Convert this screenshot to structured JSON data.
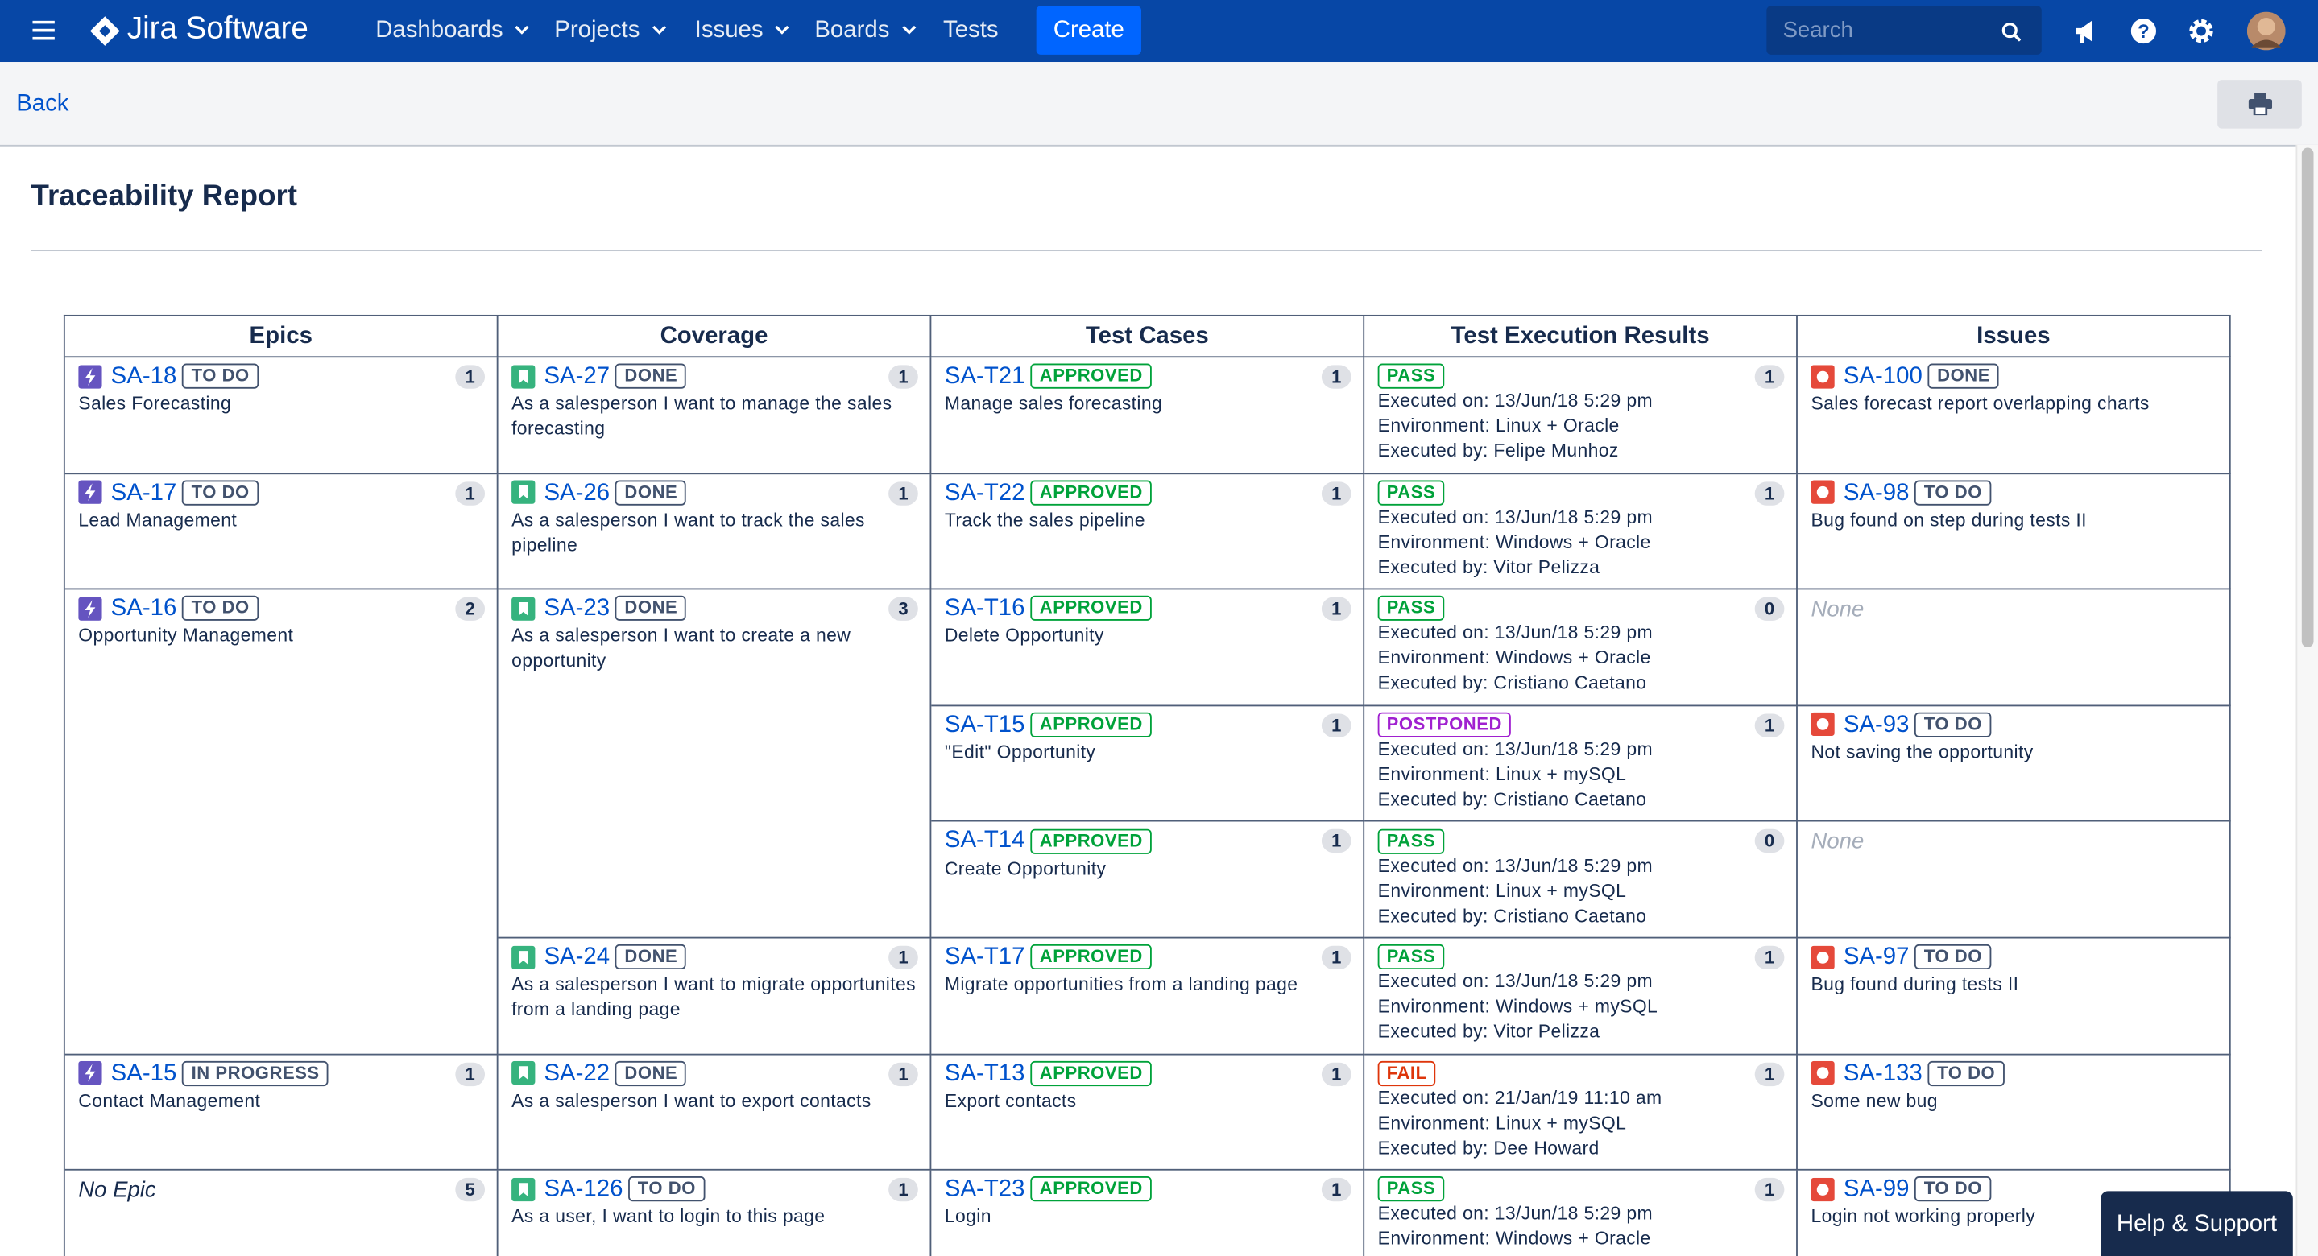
{
  "nav": {
    "brand": "Jira Software",
    "items": [
      {
        "label": "Dashboards",
        "dropdown": true
      },
      {
        "label": "Projects",
        "dropdown": true
      },
      {
        "label": "Issues",
        "dropdown": true
      },
      {
        "label": "Boards",
        "dropdown": true
      },
      {
        "label": "Tests",
        "dropdown": false
      }
    ],
    "create": "Create",
    "search": "Search"
  },
  "toolbar": {
    "back": "Back"
  },
  "report": {
    "title": "Traceability Report",
    "headers": [
      "Epics",
      "Coverage",
      "Test Cases",
      "Test Execution Results",
      "Issues"
    ],
    "columns": [
      [
        {
          "key": "SA-18",
          "status": {
            "label": "TO DO",
            "color": "#42526e"
          },
          "summary": "Sales Forecasting",
          "count": 1
        },
        {
          "key": "SA-17",
          "status": {
            "label": "TO DO",
            "color": "#42526e"
          },
          "summary": "Lead Management",
          "count": 1
        },
        {
          "key": "SA-16",
          "status": {
            "label": "TO DO",
            "color": "#42526e"
          },
          "summary": "Opportunity Management",
          "count": 2,
          "rowspan": 4
        },
        {
          "key": "SA-15",
          "status": {
            "label": "IN PROGRESS",
            "color": "#42526e"
          },
          "summary": "Contact Management",
          "count": 1
        },
        {
          "label": "No Epic",
          "count": 5
        }
      ],
      [
        {
          "key": "SA-27",
          "status": {
            "label": "DONE",
            "color": "#42526e"
          },
          "summary": "As a salesperson I want to manage the sales forecasting",
          "count": 1
        },
        {
          "key": "SA-26",
          "status": {
            "label": "DONE",
            "color": "#42526e"
          },
          "summary": "As a salesperson I want to track the sales pipeline",
          "count": 1
        },
        {
          "key": "SA-23",
          "status": {
            "label": "DONE",
            "color": "#42526e"
          },
          "summary": "As a salesperson I want to create a new opportunity",
          "count": 3,
          "rowspan": 3
        },
        {
          "key": "SA-24",
          "status": {
            "label": "DONE",
            "color": "#42526e"
          },
          "summary": "As a salesperson I want to migrate opportunites from a landing page",
          "count": 1
        },
        {
          "key": "SA-22",
          "status": {
            "label": "DONE",
            "color": "#42526e"
          },
          "summary": "As a salesperson I want to export contacts",
          "count": 1
        },
        {
          "key": "SA-126",
          "status": {
            "label": "TO DO",
            "color": "#42526e"
          },
          "summary": "As a user, I want to login to this page",
          "count": 1
        }
      ],
      [
        {
          "key": "SA-T21",
          "status": {
            "label": "APPROVED",
            "color": "#00a23a"
          },
          "summary": "Manage sales forecasting",
          "count": 1
        },
        {
          "key": "SA-T22",
          "status": {
            "label": "APPROVED",
            "color": "#00a23a"
          },
          "summary": "Track the sales pipeline",
          "count": 1
        },
        {
          "key": "SA-T16",
          "status": {
            "label": "APPROVED",
            "color": "#00a23a"
          },
          "summary": "Delete Opportunity",
          "count": 1
        },
        {
          "key": "SA-T15",
          "status": {
            "label": "APPROVED",
            "color": "#00a23a"
          },
          "summary": "\"Edit\" Opportunity",
          "count": 1
        },
        {
          "key": "SA-T14",
          "status": {
            "label": "APPROVED",
            "color": "#00a23a"
          },
          "summary": "Create Opportunity",
          "count": 1
        },
        {
          "key": "SA-T17",
          "status": {
            "label": "APPROVED",
            "color": "#00a23a"
          },
          "summary": "Migrate opportunities from a landing page",
          "count": 1
        },
        {
          "key": "SA-T13",
          "status": {
            "label": "APPROVED",
            "color": "#00a23a"
          },
          "summary": "Export contacts",
          "count": 1
        },
        {
          "key": "SA-T23",
          "status": {
            "label": "APPROVED",
            "color": "#00a23a"
          },
          "summary": "Login",
          "count": 1
        }
      ],
      [
        {
          "status": {
            "label": "PASS",
            "color": "#00a23a"
          },
          "lines": [
            "Executed on: 13/Jun/18 5:29 pm",
            "Environment: Linux + Oracle",
            "Executed by: Felipe Munhoz"
          ],
          "count": 1
        },
        {
          "status": {
            "label": "PASS",
            "color": "#00a23a"
          },
          "lines": [
            "Executed on: 13/Jun/18 5:29 pm",
            "Environment: Windows + Oracle",
            "Executed by: Vitor Pelizza"
          ],
          "count": 1
        },
        {
          "status": {
            "label": "PASS",
            "color": "#00a23a"
          },
          "lines": [
            "Executed on: 13/Jun/18 5:29 pm",
            "Environment: Windows + Oracle",
            "Executed by: Cristiano Caetano"
          ],
          "count": 0
        },
        {
          "status": {
            "label": "POSTPONED",
            "color": "#a020d0"
          },
          "lines": [
            "Executed on: 13/Jun/18 5:29 pm",
            "Environment: Linux + mySQL",
            "Executed by: Cristiano Caetano"
          ],
          "count": 1
        },
        {
          "status": {
            "label": "PASS",
            "color": "#00a23a"
          },
          "lines": [
            "Executed on: 13/Jun/18 5:29 pm",
            "Environment: Linux + mySQL",
            "Executed by: Cristiano Caetano"
          ],
          "count": 0
        },
        {
          "status": {
            "label": "PASS",
            "color": "#00a23a"
          },
          "lines": [
            "Executed on: 13/Jun/18 5:29 pm",
            "Environment: Windows + mySQL",
            "Executed by: Vitor Pelizza"
          ],
          "count": 1
        },
        {
          "status": {
            "label": "FAIL",
            "color": "#de350b"
          },
          "lines": [
            "Executed on: 21/Jan/19 11:10 am",
            "Environment: Linux + mySQL",
            "Executed by: Dee Howard"
          ],
          "count": 1
        },
        {
          "status": {
            "label": "PASS",
            "color": "#00a23a"
          },
          "lines": [
            "Executed on: 13/Jun/18 5:29 pm",
            "Environment: Windows + Oracle"
          ],
          "count": 1
        }
      ],
      [
        {
          "key": "SA-100",
          "status": {
            "label": "DONE",
            "color": "#42526e"
          },
          "summary": "Sales forecast report overlapping charts"
        },
        {
          "key": "SA-98",
          "status": {
            "label": "TO DO",
            "color": "#42526e"
          },
          "summary": "Bug found on step during tests II"
        },
        {
          "label": "None"
        },
        {
          "key": "SA-93",
          "status": {
            "label": "TO DO",
            "color": "#42526e"
          },
          "summary": "Not saving the opportunity"
        },
        {
          "label": "None"
        },
        {
          "key": "SA-97",
          "status": {
            "label": "TO DO",
            "color": "#42526e"
          },
          "summary": "Bug found during tests II"
        },
        {
          "key": "SA-133",
          "status": {
            "label": "TO DO",
            "color": "#42526e"
          },
          "summary": "Some new bug"
        },
        {
          "key": "SA-99",
          "status": {
            "label": "TO DO",
            "color": "#42526e"
          },
          "summary": "Login not working properly"
        }
      ]
    ]
  },
  "help": "Help & Support"
}
